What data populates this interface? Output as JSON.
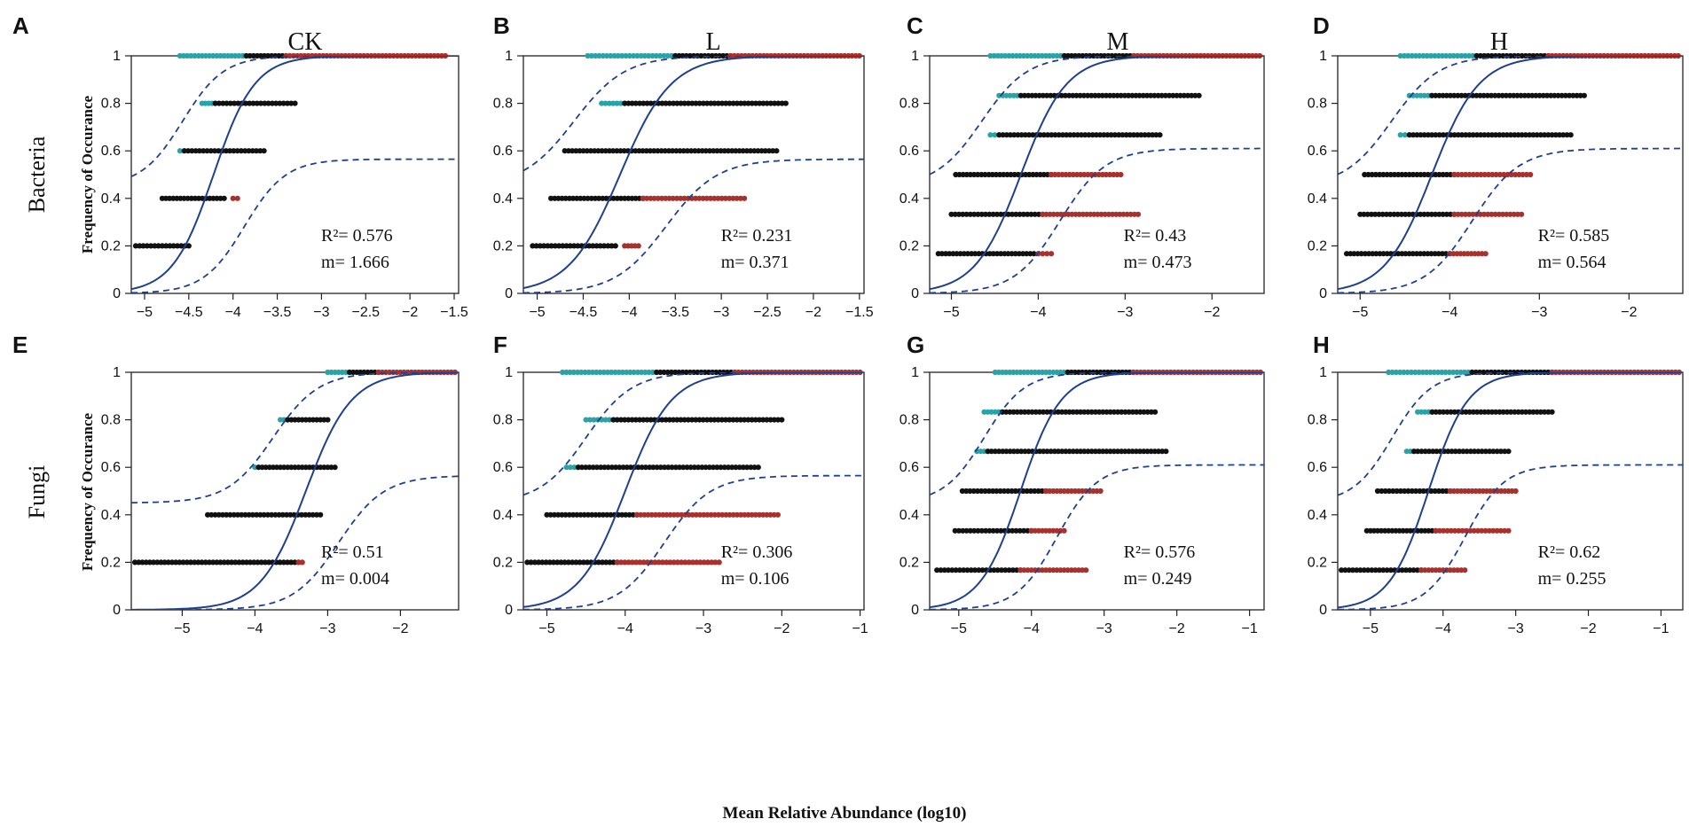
{
  "figure": {
    "column_titles": [
      "CK",
      "L",
      "M",
      "H"
    ],
    "row_titles": [
      "Bacteria",
      "Fungi"
    ],
    "shared_ylabel": "Frequency of Occurance",
    "shared_xlabel": "Mean Relative Abundance (log10)"
  },
  "colors": {
    "above": "#2aa3a8",
    "neutral": "#111111",
    "below": "#a8302d",
    "fit_line": "#1f3f8f",
    "axes": "#222222"
  },
  "chart_data": [
    {
      "panel": "A",
      "type": "scatter",
      "title": "CK",
      "row": "Bacteria",
      "xlim": [
        -5.15,
        -1.45
      ],
      "ylim": [
        0,
        1
      ],
      "xticks": [
        -5,
        -4.5,
        -4,
        -3.5,
        -3,
        -2.5,
        -2,
        -1.5
      ],
      "xtick_labels": [
        "−5",
        "−4.5",
        "−4",
        "−3.5",
        "−3",
        "−2.5",
        "−2",
        "−1.5"
      ],
      "yticks": [
        0,
        0.2,
        0.4,
        0.6,
        0.8,
        1
      ],
      "ytick_labels": [
        "0",
        "0.2",
        "0.4",
        "0.6",
        "0.8",
        "1"
      ],
      "fit_mid": -4.22,
      "fit_k": 4.3,
      "ci_lower_plateau": 0.565,
      "ci_shift": 0.35,
      "levels": [
        {
          "y": 1,
          "above": [
            -4.6,
            -3.85
          ],
          "neutral": [
            -3.85,
            -3.4
          ],
          "below": [
            -3.4,
            -1.6
          ]
        },
        {
          "y": 0.8,
          "above": [
            -4.35,
            -4.2
          ],
          "neutral": [
            -4.2,
            -3.3
          ]
        },
        {
          "y": 0.6,
          "above": [
            -4.6,
            -4.55
          ],
          "neutral": [
            -4.55,
            -3.65
          ]
        },
        {
          "y": 0.4,
          "neutral": [
            -4.8,
            -4.1
          ],
          "below": [
            -4.0,
            -3.95
          ]
        },
        {
          "y": 0.2,
          "neutral": [
            -5.1,
            -4.5
          ]
        }
      ],
      "annotation": {
        "r2": "R²= 0.576",
        "m": "m= 1.666"
      }
    },
    {
      "panel": "B",
      "type": "scatter",
      "title": "L",
      "row": "Bacteria",
      "xlim": [
        -5.15,
        -1.45
      ],
      "ylim": [
        0,
        1
      ],
      "xticks": [
        -5,
        -4.5,
        -4,
        -3.5,
        -3,
        -2.5,
        -2,
        -1.5
      ],
      "xtick_labels": [
        "−5",
        "−4.5",
        "−4",
        "−3.5",
        "−3",
        "−2.5",
        "−2",
        "−1.5"
      ],
      "yticks": [
        0,
        0.2,
        0.4,
        0.6,
        0.8,
        1
      ],
      "ytick_labels": [
        "0",
        "0.2",
        "0.4",
        "0.6",
        "0.8",
        "1"
      ],
      "fit_mid": -4.1,
      "fit_k": 3.6,
      "ci_lower_plateau": 0.565,
      "ci_shift": 0.5,
      "levels": [
        {
          "y": 1,
          "above": [
            -4.45,
            -3.5
          ],
          "neutral": [
            -3.5,
            -2.9
          ],
          "below": [
            -2.9,
            -1.5
          ]
        },
        {
          "y": 0.8,
          "above": [
            -4.3,
            -4.05
          ],
          "neutral": [
            -4.05,
            -2.3
          ]
        },
        {
          "y": 0.6,
          "neutral": [
            -4.7,
            -2.4
          ]
        },
        {
          "y": 0.4,
          "neutral": [
            -4.85,
            -3.85
          ],
          "below": [
            -3.85,
            -2.75
          ]
        },
        {
          "y": 0.2,
          "neutral": [
            -5.05,
            -4.15
          ],
          "below": [
            -4.05,
            -3.9
          ]
        }
      ],
      "annotation": {
        "r2": "R²= 0.231",
        "m": "m= 0.371"
      }
    },
    {
      "panel": "C",
      "type": "scatter",
      "title": "M",
      "row": "Bacteria",
      "xlim": [
        -5.25,
        -1.4
      ],
      "ylim": [
        0,
        1
      ],
      "xticks": [
        -5,
        -4,
        -3,
        -2
      ],
      "xtick_labels": [
        "−5",
        "−4",
        "−3",
        "−2"
      ],
      "yticks": [
        0,
        0.2,
        0.4,
        0.6,
        0.8,
        1
      ],
      "ytick_labels": [
        "0",
        "0.2",
        "0.4",
        "0.6",
        "0.8",
        "1"
      ],
      "fit_mid": -4.2,
      "fit_k": 3.8,
      "ci_lower_plateau": 0.61,
      "ci_shift": 0.45,
      "levels": [
        {
          "y": 1,
          "above": [
            -4.55,
            -3.7
          ],
          "neutral": [
            -3.7,
            -2.9
          ],
          "below": [
            -2.9,
            -1.45
          ]
        },
        {
          "y": 0.833,
          "above": [
            -4.45,
            -4.2
          ],
          "neutral": [
            -4.2,
            -2.15
          ]
        },
        {
          "y": 0.667,
          "above": [
            -4.55,
            -4.45
          ],
          "neutral": [
            -4.45,
            -2.6
          ]
        },
        {
          "y": 0.5,
          "neutral": [
            -4.95,
            -3.85
          ],
          "below": [
            -3.85,
            -3.05
          ]
        },
        {
          "y": 0.333,
          "neutral": [
            -5.0,
            -3.95
          ],
          "below": [
            -3.95,
            -2.85
          ]
        },
        {
          "y": 0.167,
          "neutral": [
            -5.15,
            -4.05
          ],
          "below": [
            -4.0,
            -3.85
          ]
        }
      ],
      "annotation": {
        "r2": "R²= 0.43",
        "m": "m= 0.473"
      }
    },
    {
      "panel": "D",
      "type": "scatter",
      "title": "H",
      "row": "Bacteria",
      "xlim": [
        -5.25,
        -1.4
      ],
      "ylim": [
        0,
        1
      ],
      "xticks": [
        -5,
        -4,
        -3,
        -2
      ],
      "xtick_labels": [
        "−5",
        "−4",
        "−3",
        "−2"
      ],
      "yticks": [
        0,
        0.2,
        0.4,
        0.6,
        0.8,
        1
      ],
      "ytick_labels": [
        "0",
        "0.2",
        "0.4",
        "0.6",
        "0.8",
        "1"
      ],
      "fit_mid": -4.2,
      "fit_k": 3.8,
      "ci_lower_plateau": 0.61,
      "ci_shift": 0.45,
      "levels": [
        {
          "y": 1,
          "above": [
            -4.55,
            -3.7
          ],
          "neutral": [
            -3.7,
            -2.9
          ],
          "below": [
            -2.9,
            -1.45
          ]
        },
        {
          "y": 0.833,
          "above": [
            -4.45,
            -4.2
          ],
          "neutral": [
            -4.2,
            -2.5
          ]
        },
        {
          "y": 0.667,
          "above": [
            -4.55,
            -4.45
          ],
          "neutral": [
            -4.45,
            -2.65
          ]
        },
        {
          "y": 0.5,
          "neutral": [
            -4.95,
            -3.95
          ],
          "below": [
            -3.95,
            -3.1
          ]
        },
        {
          "y": 0.333,
          "neutral": [
            -5.0,
            -3.95
          ],
          "below": [
            -3.95,
            -3.2
          ]
        },
        {
          "y": 0.167,
          "neutral": [
            -5.15,
            -4.0
          ],
          "below": [
            -4.0,
            -3.6
          ]
        }
      ],
      "annotation": {
        "r2": "R²= 0.585",
        "m": "m= 0.564"
      }
    },
    {
      "panel": "E",
      "type": "scatter",
      "title": "",
      "row": "Fungi",
      "xlim": [
        -5.7,
        -1.2
      ],
      "ylim": [
        0,
        1
      ],
      "xticks": [
        -5,
        -4,
        -3,
        -2
      ],
      "xtick_labels": [
        "−5",
        "−4",
        "−3",
        "−2"
      ],
      "yticks": [
        0,
        0.2,
        0.4,
        0.6,
        0.8,
        1
      ],
      "ytick_labels": [
        "0",
        "0.2",
        "0.4",
        "0.6",
        "0.8",
        "1"
      ],
      "fit_mid": -3.3,
      "fit_k": 3.2,
      "ci_lower_plateau": 0.565,
      "ci_shift": 0.45,
      "levels": [
        {
          "y": 1,
          "above": [
            -3.0,
            -2.7
          ],
          "neutral": [
            -2.7,
            -2.3
          ],
          "below": [
            -2.3,
            -1.25
          ]
        },
        {
          "y": 0.8,
          "above": [
            -3.65,
            -3.55
          ],
          "neutral": [
            -3.55,
            -3.0
          ]
        },
        {
          "y": 0.6,
          "above": [
            -4.0,
            -3.95
          ],
          "neutral": [
            -3.95,
            -2.9
          ]
        },
        {
          "y": 0.4,
          "neutral": [
            -4.65,
            -3.1
          ]
        },
        {
          "y": 0.2,
          "neutral": [
            -5.65,
            -3.4
          ],
          "below": [
            -3.4,
            -3.35
          ]
        }
      ],
      "annotation": {
        "r2": "R²= 0.51",
        "m": "m= 0.004"
      }
    },
    {
      "panel": "F",
      "type": "scatter",
      "title": "",
      "row": "Fungi",
      "xlim": [
        -5.3,
        -0.95
      ],
      "ylim": [
        0,
        1
      ],
      "xticks": [
        -5,
        -4,
        -3,
        -2,
        -1
      ],
      "xtick_labels": [
        "−5",
        "−4",
        "−3",
        "−2",
        "−1"
      ],
      "yticks": [
        0,
        0.2,
        0.4,
        0.6,
        0.8,
        1
      ],
      "ytick_labels": [
        "0",
        "0.2",
        "0.4",
        "0.6",
        "0.8",
        "1"
      ],
      "fit_mid": -4.0,
      "fit_k": 3.4,
      "ci_lower_plateau": 0.565,
      "ci_shift": 0.5,
      "levels": [
        {
          "y": 1,
          "above": [
            -4.8,
            -3.6
          ],
          "neutral": [
            -3.6,
            -2.6
          ],
          "below": [
            -2.6,
            -1.0
          ]
        },
        {
          "y": 0.8,
          "above": [
            -4.5,
            -4.15
          ],
          "neutral": [
            -4.15,
            -2.0
          ]
        },
        {
          "y": 0.6,
          "above": [
            -4.75,
            -4.6
          ],
          "neutral": [
            -4.6,
            -2.3
          ]
        },
        {
          "y": 0.4,
          "neutral": [
            -5.0,
            -3.85
          ],
          "below": [
            -3.85,
            -2.05
          ]
        },
        {
          "y": 0.2,
          "neutral": [
            -5.25,
            -4.1
          ],
          "below": [
            -4.1,
            -2.8
          ]
        }
      ],
      "annotation": {
        "r2": "R²= 0.306",
        "m": "m= 0.106"
      }
    },
    {
      "panel": "G",
      "type": "scatter",
      "title": "",
      "row": "Fungi",
      "xlim": [
        -5.4,
        -0.8
      ],
      "ylim": [
        0,
        1
      ],
      "xticks": [
        -5,
        -4,
        -3,
        -2,
        -1
      ],
      "xtick_labels": [
        "−5",
        "−4",
        "−3",
        "−2",
        "−1"
      ],
      "yticks": [
        0,
        0.2,
        0.4,
        0.6,
        0.8,
        1
      ],
      "ytick_labels": [
        "0",
        "0.2",
        "0.4",
        "0.6",
        "0.8",
        "1"
      ],
      "fit_mid": -4.15,
      "fit_k": 3.6,
      "ci_lower_plateau": 0.61,
      "ci_shift": 0.5,
      "levels": [
        {
          "y": 1,
          "above": [
            -4.5,
            -3.5
          ],
          "neutral": [
            -3.5,
            -2.6
          ],
          "below": [
            -2.6,
            -0.85
          ]
        },
        {
          "y": 0.833,
          "above": [
            -4.65,
            -4.4
          ],
          "neutral": [
            -4.4,
            -2.3
          ]
        },
        {
          "y": 0.667,
          "above": [
            -4.75,
            -4.6
          ],
          "neutral": [
            -4.6,
            -2.15
          ]
        },
        {
          "y": 0.5,
          "neutral": [
            -4.95,
            -3.8
          ],
          "below": [
            -3.8,
            -3.05
          ]
        },
        {
          "y": 0.333,
          "neutral": [
            -5.05,
            -4.0
          ],
          "below": [
            -4.0,
            -3.55
          ]
        },
        {
          "y": 0.167,
          "neutral": [
            -5.3,
            -4.15
          ],
          "below": [
            -4.15,
            -3.25
          ]
        }
      ],
      "annotation": {
        "r2": "R²= 0.576",
        "m": "m= 0.249"
      }
    },
    {
      "panel": "H",
      "type": "scatter",
      "title": "",
      "row": "Fungi",
      "xlim": [
        -5.45,
        -0.7
      ],
      "ylim": [
        0,
        1
      ],
      "xticks": [
        -5,
        -4,
        -3,
        -2,
        -1
      ],
      "xtick_labels": [
        "−5",
        "−4",
        "−3",
        "−2",
        "−1"
      ],
      "yticks": [
        0,
        0.2,
        0.4,
        0.6,
        0.8,
        1
      ],
      "ytick_labels": [
        "0",
        "0.2",
        "0.4",
        "0.6",
        "0.8",
        "1"
      ],
      "fit_mid": -4.2,
      "fit_k": 3.7,
      "ci_lower_plateau": 0.61,
      "ci_shift": 0.5,
      "levels": [
        {
          "y": 1,
          "above": [
            -4.75,
            -3.6
          ],
          "neutral": [
            -3.6,
            -2.5
          ],
          "below": [
            -2.5,
            -0.75
          ]
        },
        {
          "y": 0.833,
          "above": [
            -4.35,
            -4.15
          ],
          "neutral": [
            -4.15,
            -2.5
          ]
        },
        {
          "y": 0.667,
          "above": [
            -4.5,
            -4.4
          ],
          "neutral": [
            -4.4,
            -3.1
          ]
        },
        {
          "y": 0.5,
          "neutral": [
            -4.9,
            -3.9
          ],
          "below": [
            -3.9,
            -3.0
          ]
        },
        {
          "y": 0.333,
          "neutral": [
            -5.05,
            -4.1
          ],
          "below": [
            -4.1,
            -3.1
          ]
        },
        {
          "y": 0.167,
          "neutral": [
            -5.4,
            -4.3
          ],
          "below": [
            -4.3,
            -3.7
          ]
        }
      ],
      "annotation": {
        "r2": "R²= 0.62",
        "m": "m= 0.255"
      }
    }
  ]
}
